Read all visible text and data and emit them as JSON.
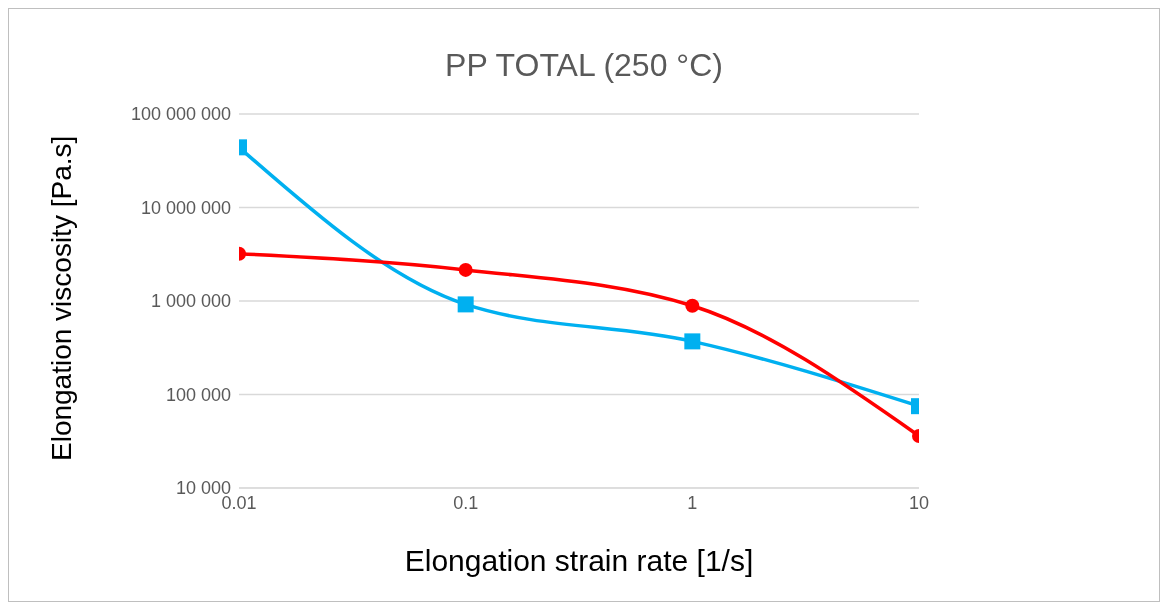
{
  "chart_data": {
    "type": "line",
    "title": "PP TOTAL (250 °C)",
    "xlabel": "Elongation strain rate [1/s]",
    "ylabel": "Elongation viscosity [Pa.s]",
    "log": "xy",
    "grid": "y",
    "legend": false,
    "xlim": [
      0.01,
      10
    ],
    "xticks": [
      0.01,
      0.1,
      1,
      10
    ],
    "ylim": [
      10000,
      100000000
    ],
    "yticks": [
      {
        "value": 10000,
        "label": "10 000"
      },
      {
        "value": 100000,
        "label": "100 000"
      },
      {
        "value": 1000000,
        "label": "1 000 000"
      },
      {
        "value": 10000000,
        "label": "10 000 000"
      },
      {
        "value": 100000000,
        "label": "100 000 000"
      }
    ],
    "x": [
      0.01,
      0.1,
      1,
      10
    ],
    "series": [
      {
        "color": "#00b0f0",
        "marker": "square",
        "values": [
          44000000,
          920000,
          370000,
          75000
        ]
      },
      {
        "color": "#ff0000",
        "marker": "circle",
        "values": [
          3200000,
          2150000,
          890000,
          36000
        ]
      }
    ]
  }
}
